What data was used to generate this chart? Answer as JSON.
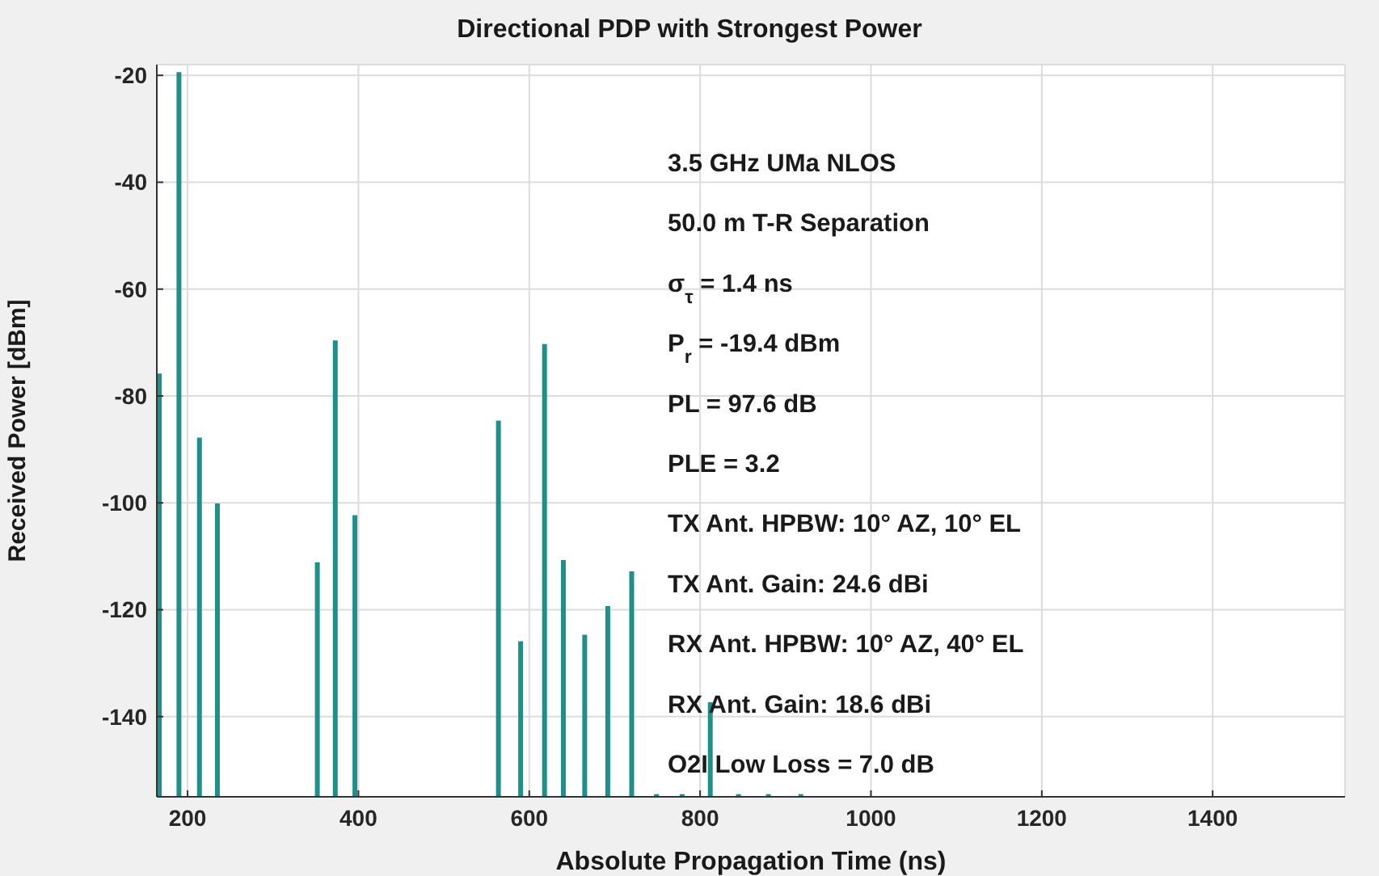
{
  "chart_data": {
    "type": "bar",
    "title": "Directional PDP with Strongest Power",
    "xlabel": "Absolute Propagation Time (ns)",
    "ylabel": "Received Power [dBm]",
    "x": [
      167,
      190,
      214,
      235,
      352,
      373,
      396,
      564,
      590,
      618,
      640,
      665,
      692,
      720,
      749,
      779,
      812,
      845,
      880,
      918
    ],
    "base": [
      -155,
      -155,
      -155,
      -155,
      -155,
      -155,
      -155,
      -155,
      -155,
      -155,
      -155,
      -155,
      -155,
      -155,
      -155,
      -155,
      -155,
      -155,
      -155,
      -155
    ],
    "values": [
      79.2,
      135.6,
      67.2,
      54.9,
      43.9,
      85.4,
      52.7,
      70.4,
      29.1,
      84.7,
      44.3,
      30.3,
      35.7,
      42.2,
      0.5,
      0.5,
      17.7,
      0.5,
      0.5,
      0.5
    ],
    "color": "#1f8f8c",
    "xlim": [
      164,
      1555
    ],
    "xticks": [
      200,
      400,
      600,
      800,
      1000,
      1200,
      1400
    ],
    "ylim": [
      -155,
      -18
    ],
    "yticks": [
      -140,
      -120,
      -100,
      -80,
      -60,
      -40,
      -20
    ],
    "grid": true,
    "annotations": [
      "3.5 GHz UMa NLOS",
      "50.0 m T-R Separation",
      "σ$_{τ}$ = 1.4 ns",
      "P$_{r}$ = -19.4 dBm",
      "PL = 97.6 dB",
      "PLE = 3.2",
      "TX Ant. HPBW: 10° AZ, 10° EL",
      "TX Ant. Gain: 24.6 dBi",
      "RX Ant. HPBW: 10° AZ, 40° EL",
      "RX Ant. Gain: 18.6 dBi",
      "O2I Low Loss = 7.0 dB"
    ]
  }
}
